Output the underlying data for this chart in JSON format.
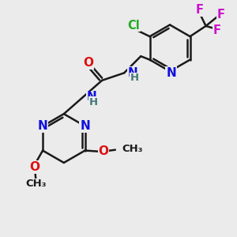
{
  "bg_color": "#ebebeb",
  "bond_color": "#1a1a1a",
  "bond_width": 1.8,
  "atom_colors": {
    "N": "#1010dd",
    "O": "#dd1010",
    "Cl": "#22aa22",
    "F": "#cc11cc",
    "C": "#1a1a1a",
    "H": "#447777"
  },
  "fs": 11,
  "fs_small": 9.5
}
